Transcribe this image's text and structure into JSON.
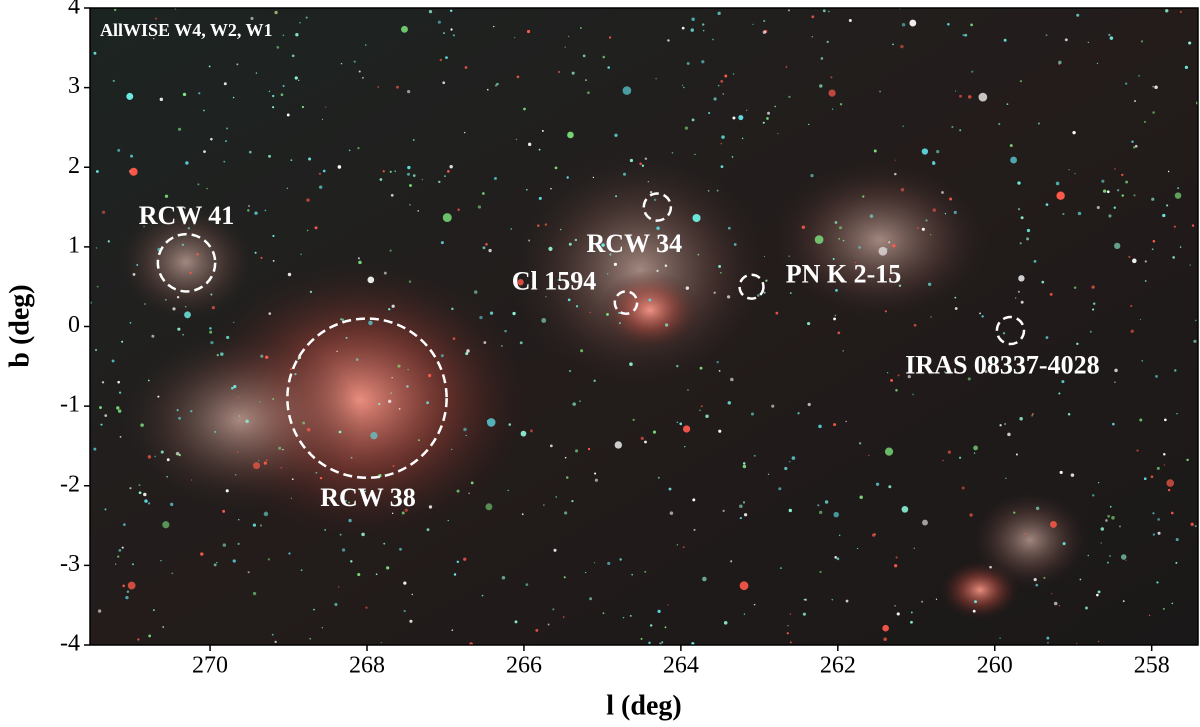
{
  "chart_data": {
    "type": "image",
    "subtitle": "AllWISE W4, W2, W1",
    "x_label": "l (deg)",
    "y_label": "b (deg)",
    "xlim": [
      271.53,
      257.41
    ],
    "ylim": [
      -4,
      4
    ],
    "xticks": [
      270,
      268,
      266,
      264,
      262,
      260,
      258
    ],
    "yticks": [
      -4,
      -3,
      -2,
      -1,
      0,
      1,
      2,
      3,
      4
    ],
    "marker_color": "#ffffff",
    "annotations": [
      {
        "label": "RCW 41",
        "l": 270.3,
        "b": 0.8,
        "radius": 0.36
      },
      {
        "label": "RCW 38",
        "l": 268.0,
        "b": -0.9,
        "radius": 1.0
      },
      {
        "label": "RCW 34",
        "l": 264.3,
        "b": 1.5,
        "radius": 0.17
      },
      {
        "label": "Cl 1594",
        "l": 264.7,
        "b": 0.3,
        "radius": 0.14
      },
      {
        "label": "PN K 2-15",
        "l": 263.1,
        "b": 0.5,
        "radius": 0.15
      },
      {
        "label": "IRAS 08337-4028",
        "l": 259.8,
        "b": -0.05,
        "radius": 0.17
      }
    ]
  }
}
